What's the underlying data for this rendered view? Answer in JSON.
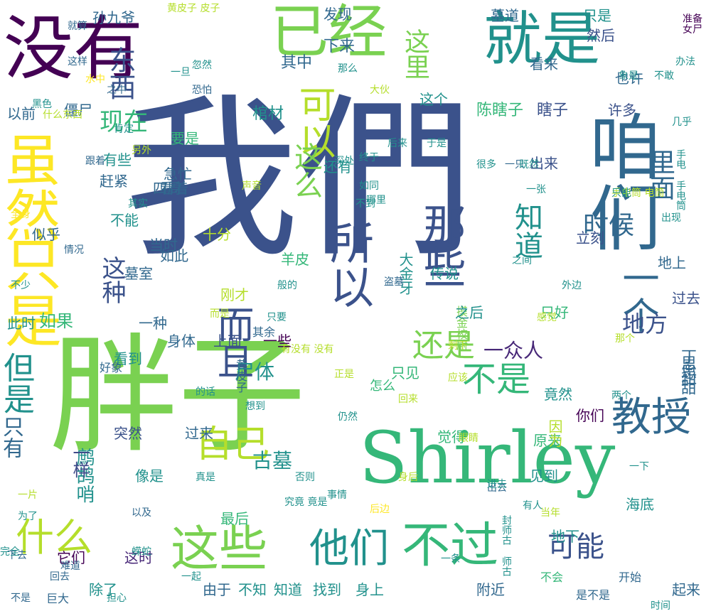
{
  "words": [
    {
      "text": "我們",
      "color": "#3b528b",
      "vertical": false
    },
    {
      "text": "胖子",
      "color": "#7ad151",
      "vertical": false
    },
    {
      "text": "Shirley",
      "color": "#35b779",
      "vertical": false
    },
    {
      "text": "没有",
      "color": "#440154",
      "vertical": false
    },
    {
      "text": "已经",
      "color": "#7ad151",
      "vertical": false
    },
    {
      "text": "就是",
      "color": "#21918c",
      "vertical": false
    },
    {
      "text": "咱们",
      "color": "#31688e",
      "vertical": true
    },
    {
      "text": "虽然",
      "color": "#fde725",
      "vertical": true
    },
    {
      "text": "只是",
      "color": "#fde725",
      "vertical": true
    },
    {
      "text": "所以",
      "color": "#3b528b",
      "vertical": true
    },
    {
      "text": "那些",
      "color": "#3b528b",
      "vertical": true
    },
    {
      "text": "这些",
      "color": "#7ad151",
      "vertical": false
    },
    {
      "text": "不过",
      "color": "#35b779",
      "vertical": false
    },
    {
      "text": "他们",
      "color": "#21918c",
      "vertical": false
    },
    {
      "text": "什么",
      "color": "#b5de2b",
      "vertical": false
    },
    {
      "text": "教授",
      "color": "#31688e",
      "vertical": false
    },
    {
      "text": "一个",
      "color": "#31688e",
      "vertical": true
    },
    {
      "text": "可以",
      "color": "#b5de2b",
      "vertical": true
    },
    {
      "text": "而且",
      "color": "#3b528b",
      "vertical": true
    },
    {
      "text": "自己",
      "color": "#b5de2b",
      "vertical": false
    },
    {
      "text": "但是",
      "color": "#21918c",
      "vertical": true
    },
    {
      "text": "不是",
      "color": "#35b779",
      "vertical": false
    },
    {
      "text": "还是",
      "color": "#7ad151",
      "vertical": false
    },
    {
      "text": "可能",
      "color": "#3b528b",
      "vertical": false
    },
    {
      "text": "知道",
      "color": "#21918c",
      "vertical": true
    },
    {
      "text": "时候",
      "color": "#31688e",
      "vertical": false
    },
    {
      "text": "这么",
      "color": "#7ad151",
      "vertical": true
    },
    {
      "text": "这种",
      "color": "#3b528b",
      "vertical": true
    },
    {
      "text": "东西",
      "color": "#3b528b",
      "vertical": true
    },
    {
      "text": "现在",
      "color": "#35b779",
      "vertical": false
    },
    {
      "text": "这里",
      "color": "#7ad151",
      "vertical": true
    },
    {
      "text": "里面",
      "color": "#31688e",
      "vertical": true
    },
    {
      "text": "地方",
      "color": "#3b528b",
      "vertical": false
    },
    {
      "text": "一众人",
      "color": "#482878",
      "vertical": false
    },
    {
      "text": "尸体",
      "color": "#21918c",
      "vertical": false
    },
    {
      "text": "古墓",
      "color": "#21918c",
      "vertical": false
    },
    {
      "text": "鹧鸪哨",
      "color": "#21918c",
      "vertical": true
    },
    {
      "text": "只有",
      "color": "#31688e",
      "vertical": true
    },
    {
      "text": "如果",
      "color": "#35b779",
      "vertical": false
    },
    {
      "text": "一样",
      "color": "#3e4a89",
      "vertical": true
    },
    {
      "text": "陈瞎子",
      "color": "#35b779",
      "vertical": false
    },
    {
      "text": "瞎子",
      "color": "#3b528b",
      "vertical": false
    },
    {
      "text": "棺材",
      "color": "#21918c",
      "vertical": false
    },
    {
      "text": "其中",
      "color": "#31688e",
      "vertical": false
    },
    {
      "text": "下来",
      "color": "#31688e",
      "vertical": false
    },
    {
      "text": "发现",
      "color": "#31688e",
      "vertical": false
    },
    {
      "text": "孙九爷",
      "color": "#31688e",
      "vertical": false
    },
    {
      "text": "这个",
      "color": "#21918c",
      "vertical": false
    },
    {
      "text": "许多",
      "color": "#3b528b",
      "vertical": false
    },
    {
      "text": "出来",
      "color": "#3b528b",
      "vertical": false
    },
    {
      "text": "立刻",
      "color": "#3b528b",
      "vertical": false
    },
    {
      "text": "看来",
      "color": "#31688e",
      "vertical": false
    },
    {
      "text": "也许",
      "color": "#31688e",
      "vertical": false
    },
    {
      "text": "只是",
      "color": "#21918c",
      "vertical": false
    },
    {
      "text": "然后",
      "color": "#3b528b",
      "vertical": false
    },
    {
      "text": "墓道",
      "color": "#31688e",
      "vertical": false
    },
    {
      "text": "赶紧",
      "color": "#31688e",
      "vertical": false
    },
    {
      "text": "似乎",
      "color": "#31688e",
      "vertical": false
    },
    {
      "text": "不能",
      "color": "#21918c",
      "vertical": false
    },
    {
      "text": "还有",
      "color": "#21918c",
      "vertical": false
    },
    {
      "text": "有些",
      "color": "#21918c",
      "vertical": false
    },
    {
      "text": "羊皮",
      "color": "#35b779",
      "vertical": false
    },
    {
      "text": "大金牙",
      "color": "#21918c",
      "vertical": true
    },
    {
      "text": "摸金校尉",
      "color": "#7ad151",
      "vertical": true
    },
    {
      "text": "传说",
      "color": "#21918c",
      "vertical": false
    },
    {
      "text": "墓室",
      "color": "#31688e",
      "vertical": false
    },
    {
      "text": "只好",
      "color": "#35b779",
      "vertical": false
    },
    {
      "text": "之后",
      "color": "#21918c",
      "vertical": false
    },
    {
      "text": "一些",
      "color": "#440154",
      "vertical": false
    },
    {
      "text": "上面",
      "color": "#3b528b",
      "vertical": false
    },
    {
      "text": "身体",
      "color": "#31688e",
      "vertical": false
    },
    {
      "text": "看到",
      "color": "#21918c",
      "vertical": false
    },
    {
      "text": "一种",
      "color": "#31688e",
      "vertical": false
    },
    {
      "text": "此时",
      "color": "#21918c",
      "vertical": false
    },
    {
      "text": "怎么",
      "color": "#35b779",
      "vertical": false
    },
    {
      "text": "只见",
      "color": "#35b779",
      "vertical": false
    },
    {
      "text": "觉得",
      "color": "#35b779",
      "vertical": false
    },
    {
      "text": "原来",
      "color": "#35b779",
      "vertical": false
    },
    {
      "text": "竟然",
      "color": "#21918c",
      "vertical": false
    },
    {
      "text": "你们",
      "color": "#440154",
      "vertical": false
    },
    {
      "text": "见到",
      "color": "#21918c",
      "vertical": false
    },
    {
      "text": "因为",
      "color": "#b5de2b",
      "vertical": true
    },
    {
      "text": "思甜",
      "color": "#31688e",
      "vertical": true
    },
    {
      "text": "丁思甜",
      "color": "#31688e",
      "vertical": true
    },
    {
      "text": "最后",
      "color": "#35b779",
      "vertical": false
    },
    {
      "text": "这时",
      "color": "#482878",
      "vertical": false
    },
    {
      "text": "由于",
      "color": "#31688e",
      "vertical": false
    },
    {
      "text": "附近",
      "color": "#31688e",
      "vertical": false
    },
    {
      "text": "身上",
      "color": "#21918c",
      "vertical": false
    },
    {
      "text": "找到",
      "color": "#21918c",
      "vertical": false
    },
    {
      "text": "知道",
      "color": "#21918c",
      "vertical": false
    },
    {
      "text": "不知",
      "color": "#21918c",
      "vertical": false
    },
    {
      "text": "除了",
      "color": "#21918c",
      "vertical": false
    },
    {
      "text": "它们",
      "color": "#440154",
      "vertical": false
    },
    {
      "text": "起来",
      "color": "#31688e",
      "vertical": false
    },
    {
      "text": "海底",
      "color": "#21918c",
      "vertical": false
    },
    {
      "text": "地下",
      "color": "#21918c",
      "vertical": false
    },
    {
      "text": "刚才",
      "color": "#b5de2b",
      "vertical": false
    },
    {
      "text": "如此",
      "color": "#31688e",
      "vertical": false
    },
    {
      "text": "当时",
      "color": "#31688e",
      "vertical": false
    },
    {
      "text": "突然",
      "color": "#3b528b",
      "vertical": false
    },
    {
      "text": "过来",
      "color": "#31688e",
      "vertical": false
    },
    {
      "text": "像是",
      "color": "#21918c",
      "vertical": false
    },
    {
      "text": "以前",
      "color": "#31688e",
      "vertical": false
    },
    {
      "text": "僵尸",
      "color": "#31688e",
      "vertical": false
    },
    {
      "text": "要是",
      "color": "#35b779",
      "vertical": false
    },
    {
      "text": "急忙",
      "color": "#31688e",
      "vertical": false
    },
    {
      "text": "看着",
      "color": "#31688e",
      "vertical": false
    },
    {
      "text": "四周",
      "color": "#31688e",
      "vertical": false
    },
    {
      "text": "十分",
      "color": "#b5de2b",
      "vertical": false
    },
    {
      "text": "好象",
      "color": "#31688e",
      "vertical": false
    },
    {
      "text": "其余",
      "color": "#31688e",
      "vertical": false
    },
    {
      "text": "地上",
      "color": "#31688e",
      "vertical": false
    },
    {
      "text": "过去",
      "color": "#3b528b",
      "vertical": false
    },
    {
      "text": "黄皮子",
      "color": "#31688e",
      "vertical": true
    },
    {
      "text": "开始",
      "color": "#31688e",
      "vertical": false
    },
    {
      "text": "不会",
      "color": "#35b779",
      "vertical": false
    },
    {
      "text": "是不是",
      "color": "#31688e",
      "vertical": false
    },
    {
      "text": "不是",
      "color": "#31688e",
      "vertical": false
    },
    {
      "text": "巨大",
      "color": "#31688e",
      "vertical": false
    },
    {
      "text": "回去",
      "color": "#31688e",
      "vertical": false
    },
    {
      "text": "难道",
      "color": "#31688e",
      "vertical": false
    },
    {
      "text": "以及",
      "color": "#31688e",
      "vertical": false
    },
    {
      "text": "出去",
      "color": "#31688e",
      "vertical": false
    },
    {
      "text": "下去",
      "color": "#31688e",
      "vertical": false
    },
    {
      "text": "就算",
      "color": "#31688e",
      "vertical": false
    },
    {
      "text": "这样",
      "color": "#31688e",
      "vertical": false
    },
    {
      "text": "之中",
      "color": "#31688e",
      "vertical": false
    },
    {
      "text": "跟着",
      "color": "#31688e",
      "vertical": false
    },
    {
      "text": "情况",
      "color": "#31688e",
      "vertical": false
    },
    {
      "text": "黄皮子 皮子",
      "color": "#b5de2b",
      "vertical": false
    },
    {
      "text": "水中",
      "color": "#fde725",
      "vertical": false
    },
    {
      "text": "恐怕",
      "color": "#31688e",
      "vertical": false
    },
    {
      "text": "那么",
      "color": "#21918c",
      "vertical": false
    },
    {
      "text": "办法",
      "color": "#21918c",
      "vertical": false
    },
    {
      "text": "不敢",
      "color": "#21918c",
      "vertical": false
    },
    {
      "text": "准备",
      "color": "#440154",
      "vertical": false
    },
    {
      "text": "女尸",
      "color": "#440154",
      "vertical": false
    },
    {
      "text": "手电筒 电筒",
      "color": "#b5de2b",
      "vertical": false
    },
    {
      "text": "一只",
      "color": "#31688e",
      "vertical": false
    },
    {
      "text": "很多",
      "color": "#21918c",
      "vertical": false
    },
    {
      "text": "声音",
      "color": "#b5de2b",
      "vertical": false
    },
    {
      "text": "后来",
      "color": "#21918c",
      "vertical": false
    },
    {
      "text": "如同",
      "color": "#21918c",
      "vertical": false
    },
    {
      "text": "终于",
      "color": "#21918c",
      "vertical": false
    },
    {
      "text": "深处",
      "color": "#21918c",
      "vertical": false
    },
    {
      "text": "般的",
      "color": "#21918c",
      "vertical": false
    },
    {
      "text": "盗墓",
      "color": "#31688e",
      "vertical": false
    },
    {
      "text": "而是",
      "color": "#b5de2b",
      "vertical": false
    },
    {
      "text": "剩下",
      "color": "#b5de2b",
      "vertical": false
    },
    {
      "text": "正是",
      "color": "#b5de2b",
      "vertical": false
    },
    {
      "text": "回来",
      "color": "#b5de2b",
      "vertical": false
    },
    {
      "text": "仍然",
      "color": "#21918c",
      "vertical": false
    },
    {
      "text": "事情",
      "color": "#21918c",
      "vertical": false
    },
    {
      "text": "身后",
      "color": "#b5de2b",
      "vertical": false
    },
    {
      "text": "否则",
      "color": "#21918c",
      "vertical": false
    },
    {
      "text": "有人",
      "color": "#21918c",
      "vertical": false
    },
    {
      "text": "当年",
      "color": "#b5de2b",
      "vertical": false
    },
    {
      "text": "真是",
      "color": "#21918c",
      "vertical": false
    },
    {
      "text": "究竟 竟是",
      "color": "#21918c",
      "vertical": false
    },
    {
      "text": "后边",
      "color": "#fde725",
      "vertical": false
    },
    {
      "text": "时间",
      "color": "#21918c",
      "vertical": false
    },
    {
      "text": "眼睛",
      "color": "#b5de2b",
      "vertical": false
    },
    {
      "text": "担心",
      "color": "#21918c",
      "vertical": false
    },
    {
      "text": "一起",
      "color": "#21918c",
      "vertical": false
    },
    {
      "text": "完全",
      "color": "#21918c",
      "vertical": false
    },
    {
      "text": "全身",
      "color": "#fde725",
      "vertical": false
    },
    {
      "text": "外边",
      "color": "#21918c",
      "vertical": false
    },
    {
      "text": "两个",
      "color": "#21918c",
      "vertical": false
    },
    {
      "text": "只要",
      "color": "#21918c",
      "vertical": false
    },
    {
      "text": "应该",
      "color": "#b5de2b",
      "vertical": false
    },
    {
      "text": "感觉",
      "color": "#b5de2b",
      "vertical": false
    },
    {
      "text": "只能",
      "color": "#21918c",
      "vertical": false
    },
    {
      "text": "出现",
      "color": "#21918c",
      "vertical": false
    },
    {
      "text": "既然",
      "color": "#21918c",
      "vertical": false
    },
    {
      "text": "手电 手电筒",
      "color": "#21918c",
      "vertical": true
    },
    {
      "text": "另外",
      "color": "#b5de2b",
      "vertical": false
    },
    {
      "text": "肯定",
      "color": "#21918c",
      "vertical": false
    },
    {
      "text": "进去",
      "color": "#21918c",
      "vertical": false
    },
    {
      "text": "封师古 师古",
      "color": "#21918c",
      "vertical": true
    },
    {
      "text": "几乎",
      "color": "#21918c",
      "vertical": false
    },
    {
      "text": "一下",
      "color": "#21918c",
      "vertical": false
    },
    {
      "text": "一条",
      "color": "#21918c",
      "vertical": false
    },
    {
      "text": "一片",
      "color": "#b5de2b",
      "vertical": false
    },
    {
      "text": "一旦",
      "color": "#21918c",
      "vertical": false
    },
    {
      "text": "忽然",
      "color": "#21918c",
      "vertical": false
    },
    {
      "text": "为了",
      "color": "#21918c",
      "vertical": false
    },
    {
      "text": "大伙",
      "color": "#b5de2b",
      "vertical": false
    },
    {
      "text": "于是",
      "color": "#21918c",
      "vertical": false
    },
    {
      "text": "黑色",
      "color": "#21918c",
      "vertical": false
    },
    {
      "text": "不少",
      "color": "#21918c",
      "vertical": false
    },
    {
      "text": "象是",
      "color": "#21918c",
      "vertical": false
    },
    {
      "text": "其实",
      "color": "#21918c",
      "vertical": false
    },
    {
      "text": "之间",
      "color": "#21918c",
      "vertical": false
    },
    {
      "text": "的话",
      "color": "#21918c",
      "vertical": false
    },
    {
      "text": "那个",
      "color": "#b5de2b",
      "vertical": false
    },
    {
      "text": "想到",
      "color": "#21918c",
      "vertical": false
    },
    {
      "text": "哪里",
      "color": "#21918c",
      "vertical": false
    },
    {
      "text": "不到",
      "color": "#21918c",
      "vertical": false
    },
    {
      "text": "什么东西",
      "color": "#b5de2b",
      "vertical": false
    },
    {
      "text": "一张",
      "color": "#21918c",
      "vertical": false
    },
    {
      "text": "蝾蛇",
      "color": "#21918c",
      "vertical": false
    },
    {
      "text": "有没有 没有",
      "color": "#b5de2b",
      "vertical": false
    }
  ]
}
